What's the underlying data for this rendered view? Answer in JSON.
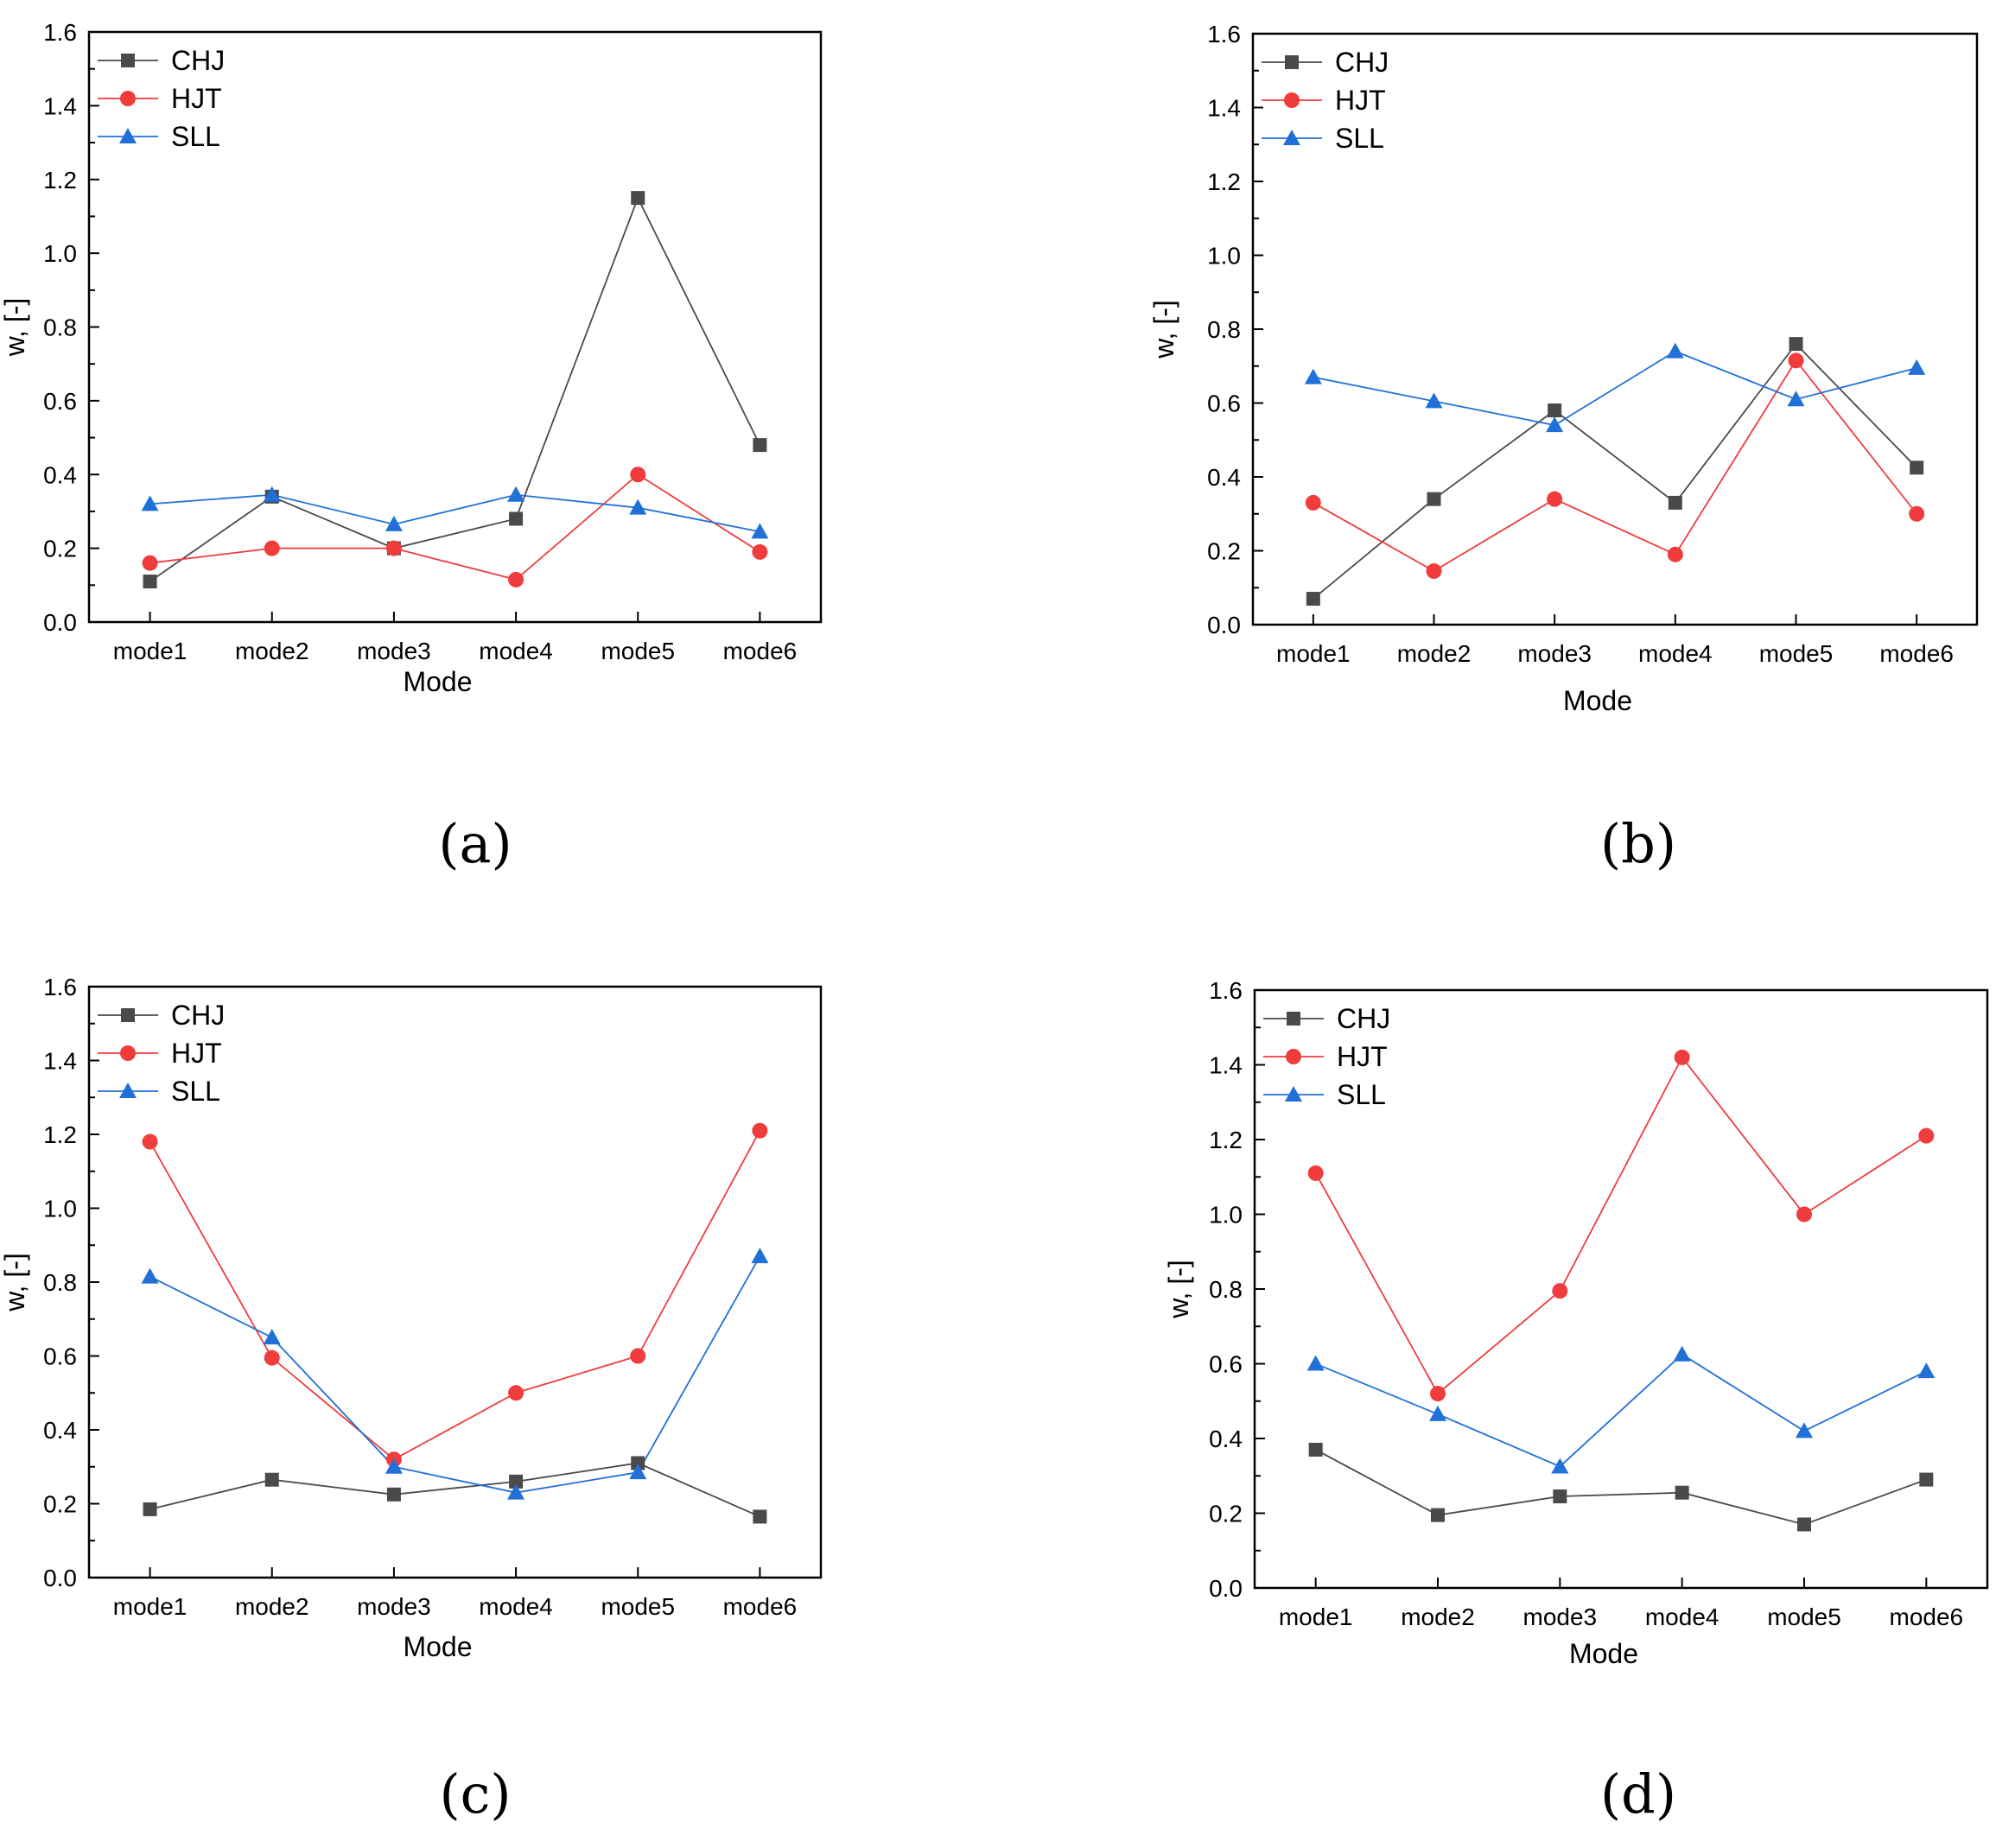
{
  "chart_data": [
    {
      "type": "line",
      "panel_label": "(a)",
      "categories": [
        "mode1",
        "mode2",
        "mode3",
        "mode4",
        "mode5",
        "mode6"
      ],
      "series": [
        {
          "name": "CHJ",
          "color": "#4a4a4a",
          "marker": "square",
          "values": [
            0.11,
            0.34,
            0.2,
            0.28,
            1.15,
            0.48
          ]
        },
        {
          "name": "HJT",
          "color": "#f03c3c",
          "marker": "circle",
          "values": [
            0.16,
            0.2,
            0.2,
            0.115,
            0.4,
            0.19
          ]
        },
        {
          "name": "SLL",
          "color": "#2070d8",
          "marker": "triangle",
          "values": [
            0.32,
            0.345,
            0.265,
            0.345,
            0.31,
            0.245
          ]
        }
      ],
      "xlabel": "Mode",
      "ylabel": "w, [-]",
      "ylim": [
        0,
        1.6
      ],
      "yticks": [
        "0.0",
        "0.2",
        "0.4",
        "0.6",
        "0.8",
        "1.0",
        "1.2",
        "1.4",
        "1.6"
      ],
      "legend": "top-left"
    },
    {
      "type": "line",
      "panel_label": "(b)",
      "categories": [
        "mode1",
        "mode2",
        "mode3",
        "mode4",
        "mode5",
        "mode6"
      ],
      "series": [
        {
          "name": "CHJ",
          "color": "#4a4a4a",
          "marker": "square",
          "values": [
            0.07,
            0.34,
            0.58,
            0.33,
            0.76,
            0.425
          ]
        },
        {
          "name": "HJT",
          "color": "#f03c3c",
          "marker": "circle",
          "values": [
            0.33,
            0.145,
            0.34,
            0.19,
            0.715,
            0.3
          ]
        },
        {
          "name": "SLL",
          "color": "#2070d8",
          "marker": "triangle",
          "values": [
            0.67,
            0.605,
            0.54,
            0.74,
            0.61,
            0.695
          ]
        }
      ],
      "xlabel": "Mode",
      "ylabel": "w, [-]",
      "ylim": [
        0,
        1.6
      ],
      "yticks": [
        "0.0",
        "0.2",
        "0.4",
        "0.6",
        "0.8",
        "1.0",
        "1.2",
        "1.4",
        "1.6"
      ],
      "legend": "top-left"
    },
    {
      "type": "line",
      "panel_label": "(c)",
      "categories": [
        "mode1",
        "mode2",
        "mode3",
        "mode4",
        "mode5",
        "mode6"
      ],
      "series": [
        {
          "name": "CHJ",
          "color": "#4a4a4a",
          "marker": "square",
          "values": [
            0.185,
            0.265,
            0.225,
            0.26,
            0.31,
            0.165
          ]
        },
        {
          "name": "HJT",
          "color": "#f03c3c",
          "marker": "circle",
          "values": [
            1.18,
            0.595,
            0.32,
            0.5,
            0.6,
            1.21
          ]
        },
        {
          "name": "SLL",
          "color": "#2070d8",
          "marker": "triangle",
          "values": [
            0.815,
            0.65,
            0.3,
            0.23,
            0.285,
            0.87
          ]
        }
      ],
      "xlabel": "Mode",
      "ylabel": "w, [-]",
      "ylim": [
        0,
        1.6
      ],
      "yticks": [
        "0.0",
        "0.2",
        "0.4",
        "0.6",
        "0.8",
        "1.0",
        "1.2",
        "1.4",
        "1.6"
      ],
      "legend": "top-left"
    },
    {
      "type": "line",
      "panel_label": "(d)",
      "categories": [
        "mode1",
        "mode2",
        "mode3",
        "mode4",
        "mode5",
        "mode6"
      ],
      "series": [
        {
          "name": "CHJ",
          "color": "#4a4a4a",
          "marker": "square",
          "values": [
            0.37,
            0.195,
            0.245,
            0.255,
            0.17,
            0.29
          ]
        },
        {
          "name": "HJT",
          "color": "#f03c3c",
          "marker": "circle",
          "values": [
            1.11,
            0.52,
            0.795,
            1.42,
            1.0,
            1.21
          ]
        },
        {
          "name": "SLL",
          "color": "#2070d8",
          "marker": "triangle",
          "values": [
            0.6,
            0.465,
            0.325,
            0.625,
            0.42,
            0.58
          ]
        }
      ],
      "xlabel": "Mode",
      "ylabel": "w, [-]",
      "ylim": [
        0,
        1.6
      ],
      "yticks": [
        "0.0",
        "0.2",
        "0.4",
        "0.6",
        "0.8",
        "1.0",
        "1.2",
        "1.4",
        "1.6"
      ],
      "legend": "top-left"
    }
  ]
}
